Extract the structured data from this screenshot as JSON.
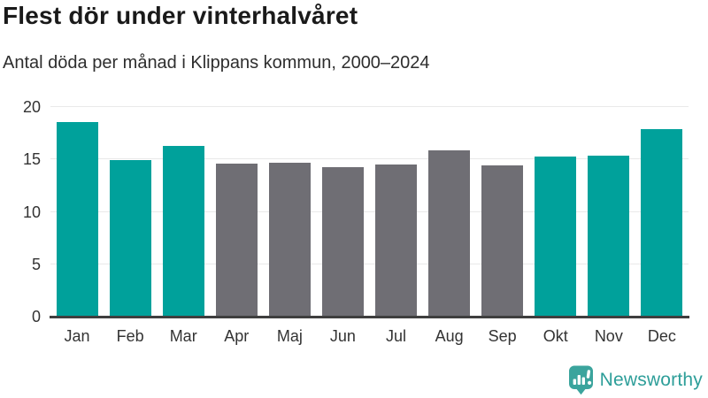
{
  "header": {
    "title": "Flest dör under vinterhalvåret",
    "subtitle": "Antal döda per månad i Klippans kommun, 2000–2024"
  },
  "chart_data": {
    "type": "bar",
    "title": "Flest dör under vinterhalvåret",
    "subtitle": "Antal döda per månad i Klippans kommun, 2000–2024",
    "categories": [
      "Jan",
      "Feb",
      "Mar",
      "Apr",
      "Maj",
      "Jun",
      "Jul",
      "Aug",
      "Sep",
      "Okt",
      "Nov",
      "Dec"
    ],
    "values": [
      18.6,
      14.9,
      16.3,
      14.6,
      14.7,
      14.3,
      14.5,
      15.9,
      14.4,
      15.3,
      15.4,
      17.9
    ],
    "bar_colors": [
      "#00a19b",
      "#00a19b",
      "#00a19b",
      "#6f6e74",
      "#6f6e74",
      "#6f6e74",
      "#6f6e74",
      "#6f6e74",
      "#6f6e74",
      "#00a19b",
      "#00a19b",
      "#00a19b"
    ],
    "highlight_color_winter_months": "#00a19b",
    "default_color_summer_months": "#6f6e74",
    "yticks": [
      0,
      5,
      10,
      15,
      20
    ],
    "ylim": [
      0,
      20
    ],
    "xlabel": "",
    "ylabel": "",
    "grid": true,
    "legend_position": "none"
  },
  "footer": {
    "brand": "Newsworthy",
    "brand_color": "#2d9e99",
    "logo_icon": "newsworthy-speech-bubble-bar-chart-icon"
  },
  "colors": {
    "axis_line": "#3f3f3f",
    "gridline": "#e9e9e9",
    "axis_text": "#333333",
    "title_text": "#1a1a1a"
  }
}
